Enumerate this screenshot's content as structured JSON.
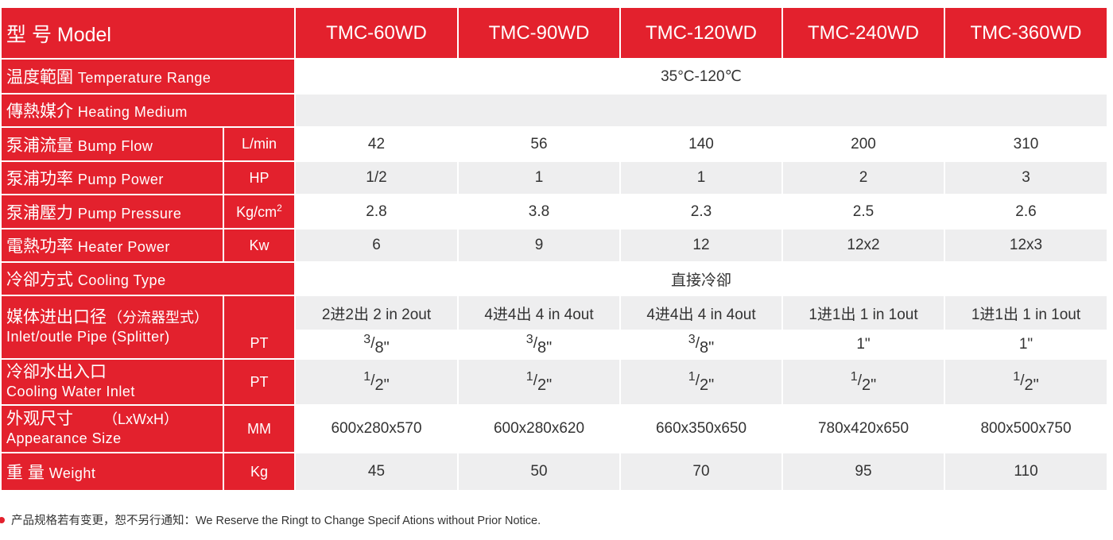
{
  "header": {
    "label": "型 号 Model",
    "models": [
      "TMC-60WD",
      "TMC-90WD",
      "TMC-120WD",
      "TMC-240WD",
      "TMC-360WD"
    ]
  },
  "rows": {
    "temp": {
      "cn": "温度範圍",
      "en": "Temperature Range",
      "value": "35°C-120℃"
    },
    "medium": {
      "cn": "傳熱媒介",
      "en": "Heating Medium",
      "value": ""
    },
    "flow": {
      "cn": "泵浦流量",
      "en": "Bump Flow",
      "unit": "L/min",
      "values": [
        "42",
        "56",
        "140",
        "200",
        "310"
      ]
    },
    "power": {
      "cn": "泵浦功率",
      "en": "Pump Power",
      "unit": "HP",
      "values": [
        "1/2",
        "1",
        "1",
        "2",
        "3"
      ]
    },
    "pressure": {
      "cn": "泵浦壓力",
      "en": "Pump Pressure",
      "unit": "Kg/cm",
      "unit_sup": "2",
      "values": [
        "2.8",
        "3.8",
        "2.3",
        "2.5",
        "2.6"
      ]
    },
    "heater": {
      "cn": "電熱功率",
      "en": "Heater Power",
      "unit": "Kw",
      "values": [
        "6",
        "9",
        "12",
        "12x2",
        "12x3"
      ]
    },
    "cooling": {
      "cn": "冷卻方式",
      "en": "Cooling Type",
      "value": "直接冷卻"
    },
    "inlet": {
      "cn": "媒体进出口径",
      "cn_note": "（分流器型式）",
      "en": "Inlet/outle Pipe (Splitter)",
      "unit": "PT",
      "splits": [
        "2进2出 2 in 2out",
        "4进4出 4 in 4out",
        "4进4出 4 in 4out",
        "1进1出 1 in 1out",
        "1进1出 1 in 1out"
      ],
      "sizes": [
        {
          "num": "3",
          "den": "8\""
        },
        {
          "num": "3",
          "den": "8\""
        },
        {
          "num": "3",
          "den": "8\""
        },
        {
          "text": "1\""
        },
        {
          "text": "1\""
        }
      ]
    },
    "water": {
      "cn": "冷卻水出入口",
      "en": "Cooling Water Inlet",
      "unit": "PT",
      "sizes": [
        {
          "num": "1",
          "den": "2\""
        },
        {
          "num": "1",
          "den": "2\""
        },
        {
          "num": "1",
          "den": "2\""
        },
        {
          "num": "1",
          "den": "2\""
        },
        {
          "num": "1",
          "den": "2\""
        }
      ]
    },
    "size": {
      "cn": "外观尺寸",
      "cn_note": "（LxWxH）",
      "en": "Appearance Size",
      "unit": "MM",
      "values": [
        "600x280x570",
        "600x280x620",
        "660x350x650",
        "780x420x650",
        "800x500x750"
      ]
    },
    "weight": {
      "cn": "重 量",
      "en": "Weight",
      "unit": "Kg",
      "values": [
        "45",
        "50",
        "70",
        "95",
        "110"
      ]
    }
  },
  "footnote": "产品规格若有变更，恕不另行通知：We Reserve the Ringt to Change Specif Ations without Prior Notice.",
  "colors": {
    "accent": "#e3212d",
    "row_alt": "#eeeeef"
  }
}
